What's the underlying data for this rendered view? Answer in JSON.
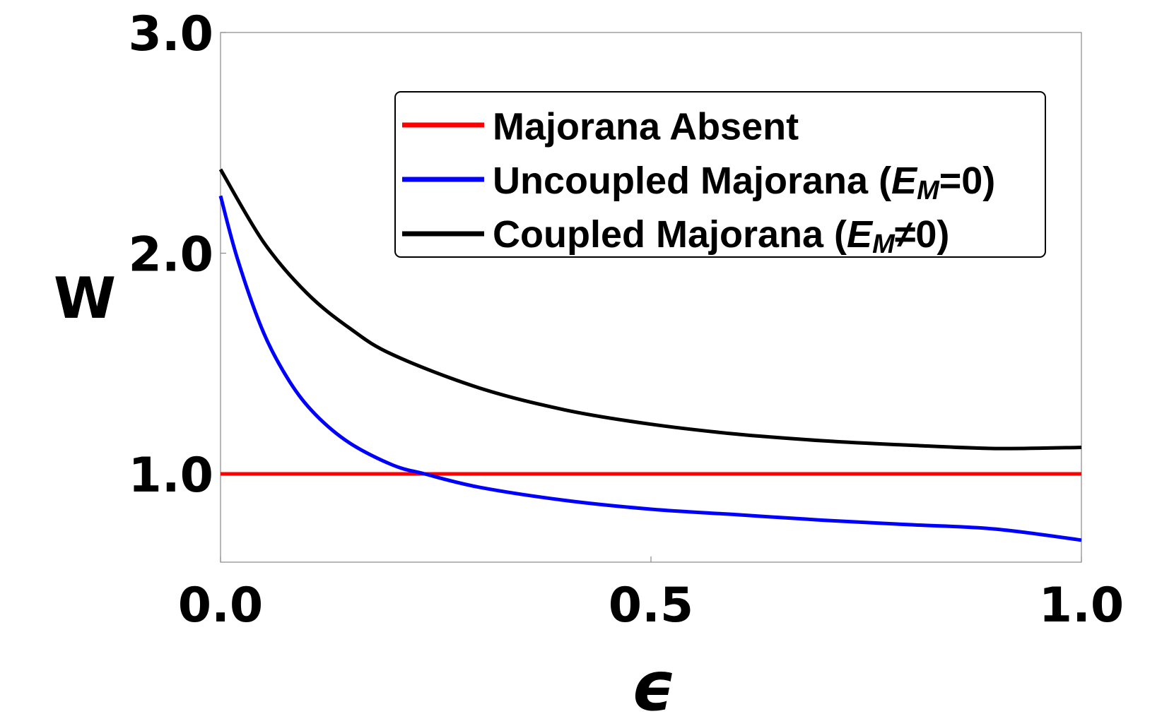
{
  "chart_data": {
    "type": "line",
    "title": "",
    "xlabel": "ϵ",
    "ylabel": "W",
    "xlim": [
      0.0,
      1.0
    ],
    "ylim": [
      0.6,
      3.0
    ],
    "x_ticks": [
      "0.0",
      "0.5",
      "1.0"
    ],
    "y_ticks": [
      "1.0",
      "2.0",
      "3.0"
    ],
    "x_tick_values": [
      0.0,
      0.5,
      1.0
    ],
    "y_tick_values": [
      1.0,
      2.0,
      3.0
    ],
    "grid": false,
    "legend_position": "top-right",
    "series": [
      {
        "name": "Majorana Absent",
        "color": "#ff0000",
        "x": [
          0.0,
          1.0
        ],
        "y": [
          1.0,
          1.0
        ]
      },
      {
        "name": "Uncoupled Majorana (E_M=0)",
        "label_parts": {
          "prefix": "Uncoupled Majorana (",
          "var": "E",
          "sub": "M",
          "suffix": "=0)"
        },
        "color": "#0000ff",
        "x": [
          0.0,
          0.02,
          0.05,
          0.08,
          0.11,
          0.15,
          0.2,
          0.237,
          0.3,
          0.4,
          0.5,
          0.6,
          0.7,
          0.8,
          0.9,
          1.0
        ],
        "y": [
          2.26,
          1.97,
          1.64,
          1.42,
          1.27,
          1.14,
          1.04,
          1.0,
          0.94,
          0.88,
          0.84,
          0.815,
          0.79,
          0.77,
          0.75,
          0.7
        ]
      },
      {
        "name": "Coupled Majorana (E_M≠0)",
        "label_parts": {
          "prefix": "Coupled Majorana (",
          "var": "E",
          "sub": "M",
          "suffix": "≠0)"
        },
        "color": "#000000",
        "x": [
          0.0,
          0.05,
          0.1,
          0.15,
          0.2,
          0.3,
          0.4,
          0.5,
          0.6,
          0.7,
          0.8,
          0.9,
          1.0
        ],
        "y": [
          2.38,
          2.05,
          1.82,
          1.66,
          1.54,
          1.39,
          1.29,
          1.225,
          1.18,
          1.15,
          1.13,
          1.115,
          1.12
        ]
      }
    ]
  }
}
